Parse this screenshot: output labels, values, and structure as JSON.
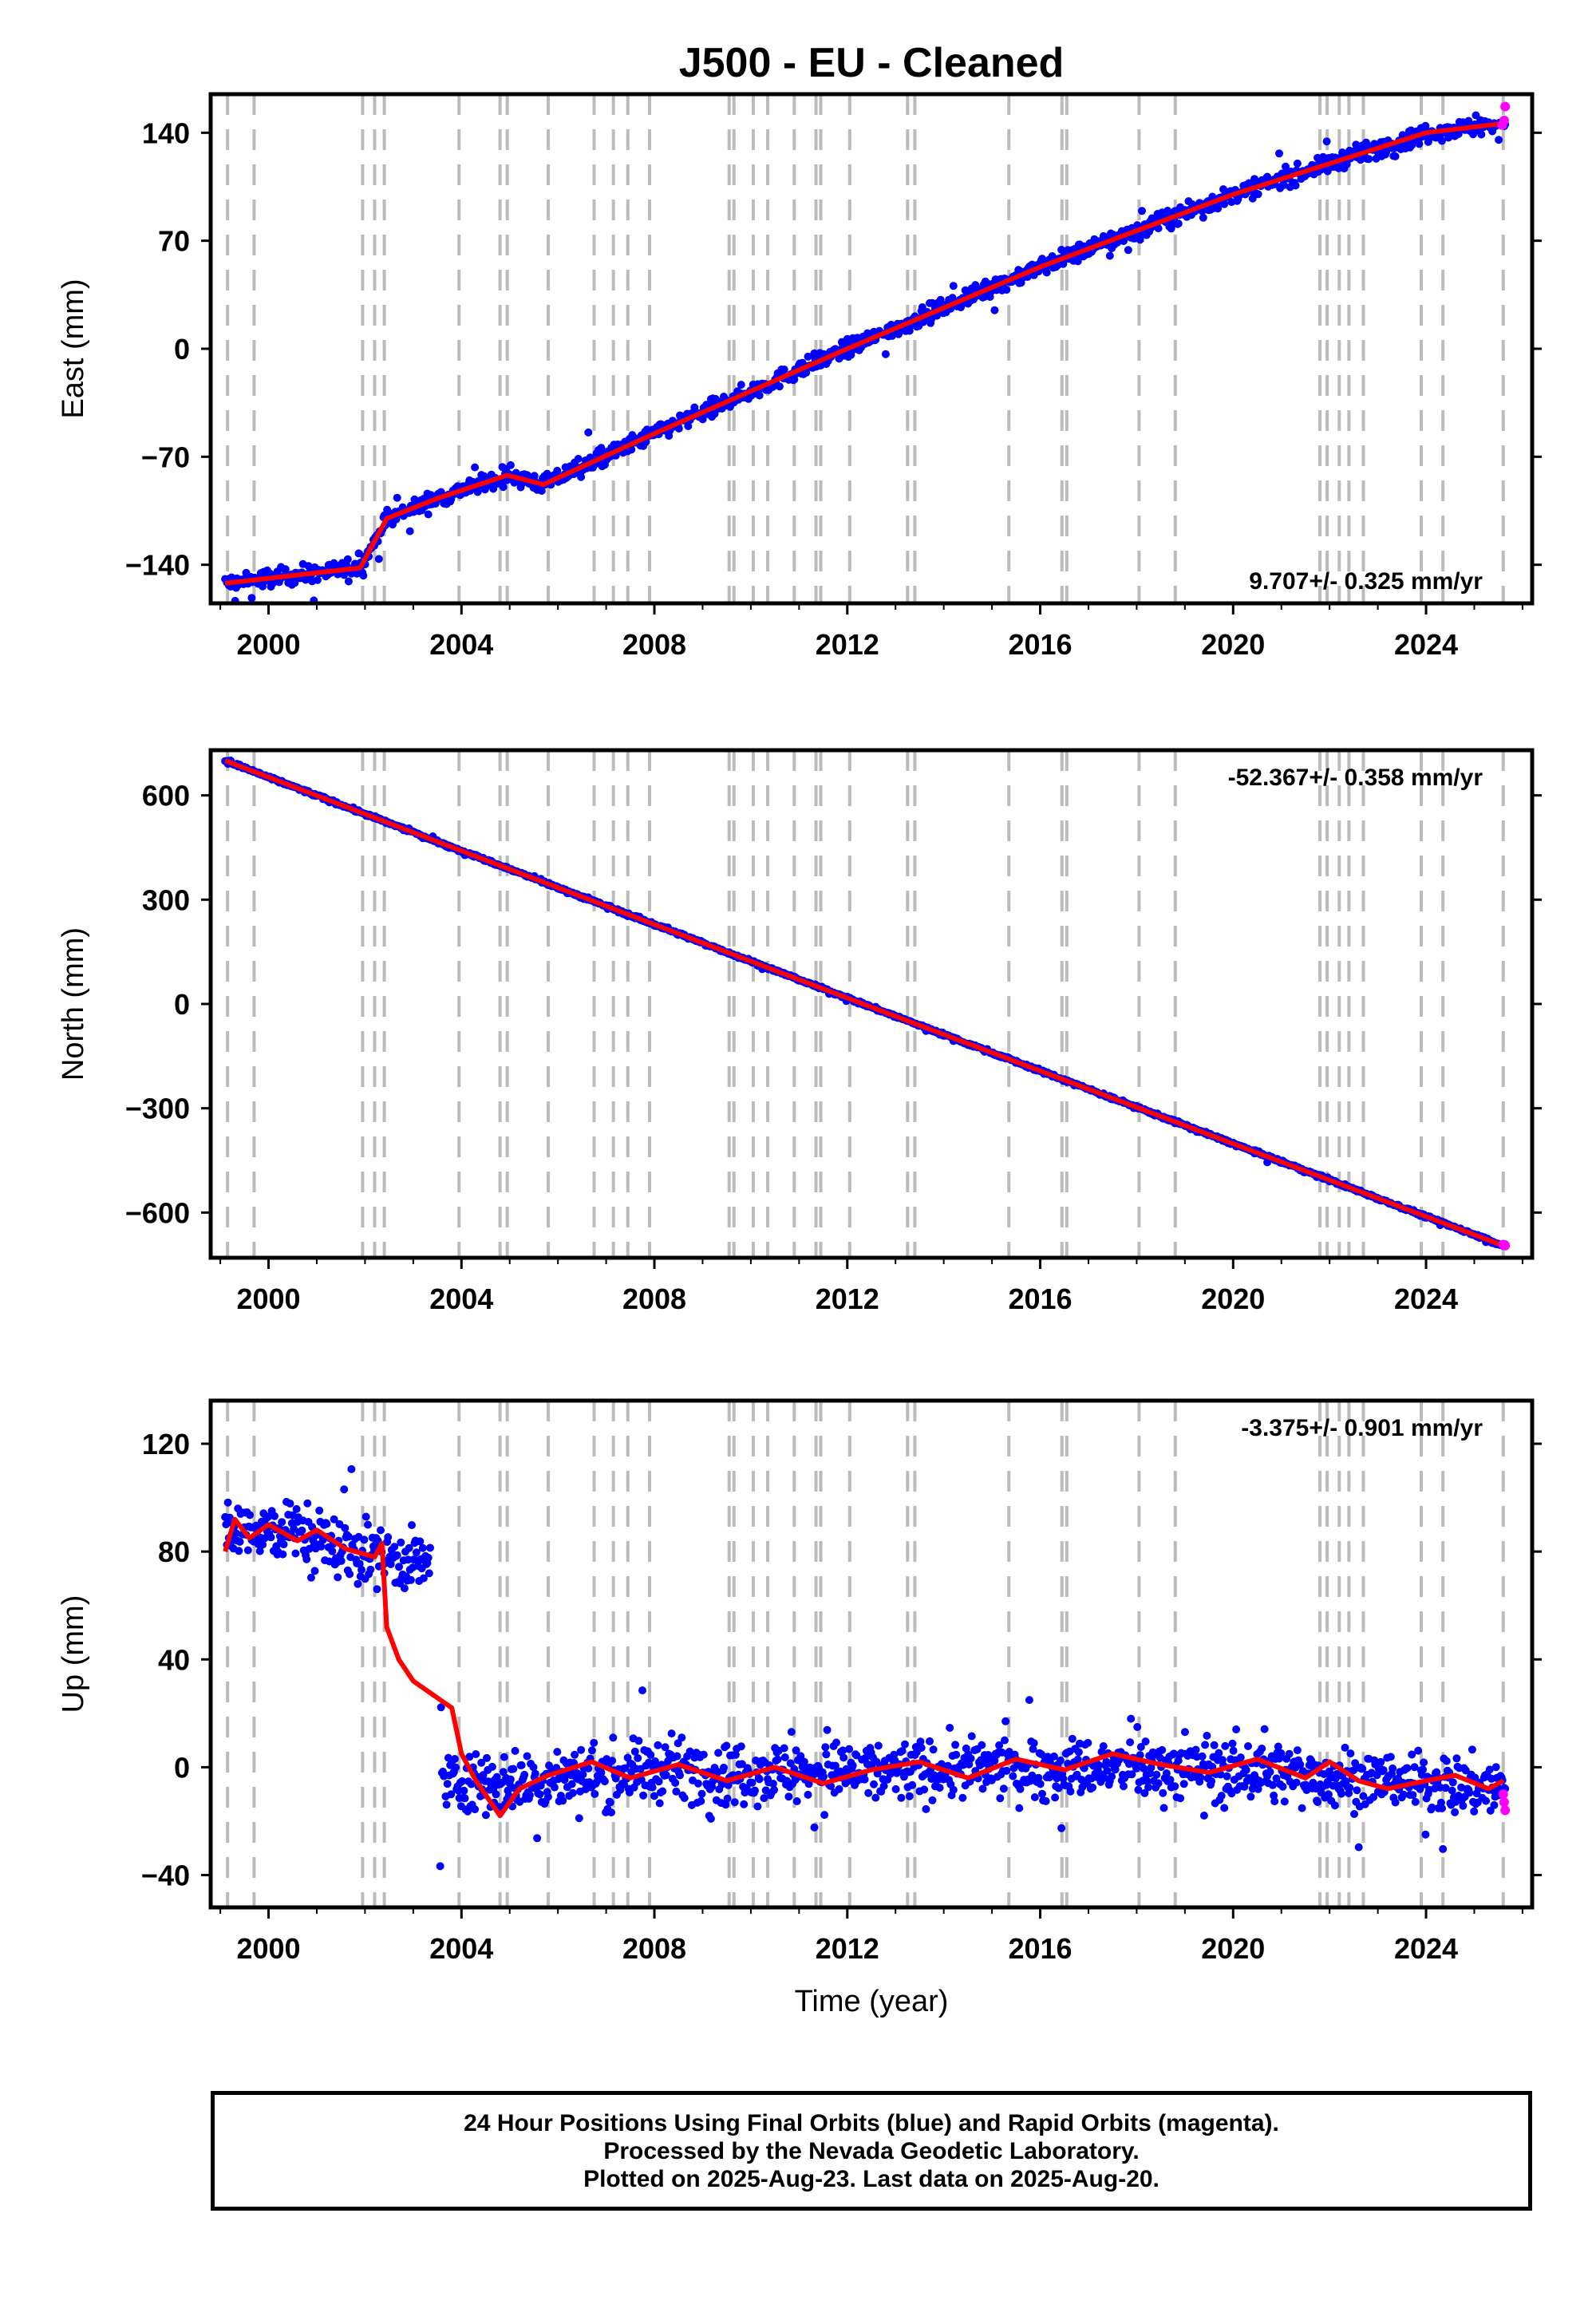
{
  "chart_data": {
    "title": "J500  - EU - Cleaned",
    "xlabel": "Time (year)",
    "x_ticks": [
      2000,
      2004,
      2008,
      2012,
      2016,
      2020,
      2024
    ],
    "x_range": [
      1998.8,
      2026.2
    ],
    "x_limits": [
      1999.1,
      2025.64
    ],
    "event_lines": [
      1999.15,
      1999.7,
      2001.95,
      2002.2,
      2002.4,
      2003.95,
      2004.8,
      2004.95,
      2005.8,
      2006.75,
      2007.15,
      2007.45,
      2007.9,
      2009.55,
      2009.65,
      2010.05,
      2010.35,
      2010.9,
      2011.35,
      2011.45,
      2012.05,
      2013.25,
      2013.4,
      2015.35,
      2016.45,
      2016.55,
      2018.05,
      2018.8,
      2021.8,
      2021.95,
      2022.2,
      2022.4,
      2022.7,
      2023.9,
      2024.35,
      2025.6
    ],
    "legend": "none",
    "grid": false,
    "panels": [
      {
        "ylabel": "East (mm)",
        "ylim": [
          -165,
          165
        ],
        "y_ticks": [
          140,
          70,
          0,
          -70,
          -140
        ],
        "y_tick_labels": [
          "140",
          "70",
          "0",
          "−70",
          "−140"
        ],
        "rate_text": "9.707+/- 0.325 mm/yr",
        "type": "scatter",
        "series": [
          {
            "color": "#0000ff",
            "noise": 5,
            "x": [
              1999.1,
              2001.9,
              2002.45,
              2003.5,
              2004.95,
              2005.7,
              2008.0,
              2012.0,
              2016.0,
              2020.0,
              2024.0,
              2025.6
            ],
            "y": [
              -152,
              -142,
              -110,
              -97,
              -82,
              -88,
              -55,
              0,
              53,
              100,
              140,
              146
            ]
          },
          {
            "color": "#ff0000",
            "x": [
              1999.1,
              2001.9,
              2002.45,
              2003.5,
              2004.95,
              2005.7,
              2008.0,
              2012.0,
              2016.0,
              2020.0,
              2024.0,
              2025.6
            ],
            "y": [
              -152,
              -142,
              -110,
              -97,
              -82,
              -88,
              -55,
              0,
              53,
              100,
              140,
              146
            ]
          },
          {
            "color": "#ff00ff",
            "x": [
              2025.58,
              2025.62,
              2025.64
            ],
            "y": [
              145,
              148,
              157
            ]
          }
        ]
      },
      {
        "ylabel": "North (mm)",
        "ylim": [
          -730,
          730
        ],
        "y_ticks": [
          600,
          300,
          0,
          -300,
          -600
        ],
        "y_tick_labels": [
          "600",
          "300",
          "0",
          "−300",
          "−600"
        ],
        "rate_text": "-52.367+/- 0.358 mm/yr",
        "type": "scatter",
        "series": [
          {
            "color": "#0000ff",
            "noise": 4,
            "x": [
              1999.1,
              2012.0,
              2025.6
            ],
            "y": [
              700,
              17,
              -695
            ]
          },
          {
            "color": "#ff0000",
            "x": [
              1999.1,
              2012.0,
              2025.6
            ],
            "y": [
              700,
              17,
              -695
            ]
          },
          {
            "color": "#ff00ff",
            "x": [
              2025.6,
              2025.64
            ],
            "y": [
              -692,
              -695
            ]
          }
        ]
      },
      {
        "ylabel": "Up (mm)",
        "ylim": [
          -52,
          136
        ],
        "y_ticks": [
          120,
          80,
          40,
          0,
          -40
        ],
        "y_tick_labels": [
          "120",
          "80",
          "40",
          "0",
          "−40"
        ],
        "rate_text": "-3.375+/- 0.901 mm/yr",
        "type": "scatter",
        "series": [
          {
            "color": "#0000ff",
            "noise": 10,
            "gap": [
              2003.35,
              2003.55
            ],
            "x": [
              1999.1,
              1999.5,
              2000.5,
              2001.5,
              2002.4,
              2003.35,
              2003.55,
              2005.0,
              2008.0,
              2012.0,
              2016.0,
              2020.0,
              2024.0,
              2025.6
            ],
            "y": [
              85,
              90,
              87,
              82,
              78,
              75,
              -5,
              -6,
              -1,
              -2,
              0,
              -1,
              -6,
              -8
            ]
          },
          {
            "color": "#ff0000",
            "x": [
              1999.1,
              1999.3,
              1999.6,
              2000.0,
              2000.6,
              2001.0,
              2001.6,
              2002.2,
              2002.35,
              2002.45,
              2002.7,
              2003.0,
              2003.4,
              2003.8,
              2004.0,
              2004.3,
              2004.8,
              2005.2,
              2005.8,
              2006.7,
              2007.5,
              2008.5,
              2009.5,
              2010.5,
              2011.5,
              2012.5,
              2013.5,
              2014.5,
              2015.5,
              2016.5,
              2017.5,
              2018.5,
              2019.5,
              2020.5,
              2021.5,
              2022.0,
              2022.6,
              2023.2,
              2024.0,
              2024.6,
              2025.3,
              2025.6
            ],
            "y": [
              80,
              92,
              85,
              90,
              84,
              88,
              81,
              78,
              83,
              52,
              40,
              32,
              27,
              22,
              5,
              -5,
              -18,
              -8,
              -3,
              2,
              -4,
              1,
              -5,
              0,
              -6,
              -1,
              2,
              -4,
              3,
              -1,
              5,
              1,
              -2,
              3,
              -4,
              2,
              -5,
              -8,
              -5,
              -3,
              -8,
              -5
            ]
          },
          {
            "color": "#ff00ff",
            "x": [
              2025.6,
              2025.62,
              2025.64
            ],
            "y": [
              -10,
              -13,
              -16
            ]
          }
        ]
      }
    ]
  },
  "footer": {
    "line1": "24 Hour Positions Using Final Orbits (blue) and Rapid Orbits (magenta).",
    "line2": "Processed by the Nevada Geodetic Laboratory.",
    "line3": "Plotted on 2025-Aug-23. Last data on 2025-Aug-20."
  }
}
